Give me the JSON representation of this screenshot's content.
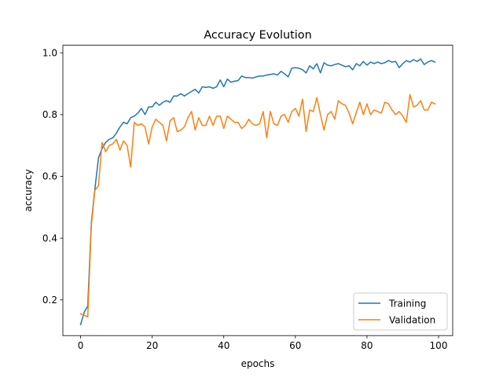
{
  "chart_data": {
    "type": "line",
    "title": "Accuracy Evolution",
    "xlabel": "epochs",
    "ylabel": "accuracy",
    "xlim": [
      -4.95,
      103.95
    ],
    "ylim": [
      0.0845,
      1.0245
    ],
    "xticks": [
      0,
      20,
      40,
      60,
      80,
      100
    ],
    "yticks": [
      0.2,
      0.4,
      0.6,
      0.8,
      1.0
    ],
    "xtick_labels": [
      "0",
      "20",
      "40",
      "60",
      "80",
      "100"
    ],
    "ytick_labels": [
      "0.2",
      "0.4",
      "0.6",
      "0.8",
      "1.0"
    ],
    "grid": false,
    "legend": "lower-right",
    "x": [
      0,
      1,
      2,
      3,
      4,
      5,
      6,
      7,
      8,
      9,
      10,
      11,
      12,
      13,
      14,
      15,
      16,
      17,
      18,
      19,
      20,
      21,
      22,
      23,
      24,
      25,
      26,
      27,
      28,
      29,
      30,
      31,
      32,
      33,
      34,
      35,
      36,
      37,
      38,
      39,
      40,
      41,
      42,
      43,
      44,
      45,
      46,
      47,
      48,
      49,
      50,
      51,
      52,
      53,
      54,
      55,
      56,
      57,
      58,
      59,
      60,
      61,
      62,
      63,
      64,
      65,
      66,
      67,
      68,
      69,
      70,
      71,
      72,
      73,
      74,
      75,
      76,
      77,
      78,
      79,
      80,
      81,
      82,
      83,
      84,
      85,
      86,
      87,
      88,
      89,
      90,
      91,
      92,
      93,
      94,
      95,
      96,
      97,
      98,
      99
    ],
    "series": [
      {
        "name": "Training",
        "color": "#1f77b4",
        "values": [
          0.12,
          0.16,
          0.18,
          0.45,
          0.56,
          0.66,
          0.69,
          0.71,
          0.72,
          0.725,
          0.74,
          0.76,
          0.775,
          0.77,
          0.79,
          0.795,
          0.805,
          0.82,
          0.8,
          0.825,
          0.825,
          0.84,
          0.83,
          0.84,
          0.845,
          0.84,
          0.86,
          0.86,
          0.868,
          0.86,
          0.868,
          0.875,
          0.882,
          0.87,
          0.89,
          0.888,
          0.89,
          0.885,
          0.89,
          0.912,
          0.89,
          0.915,
          0.905,
          0.908,
          0.91,
          0.925,
          0.92,
          0.92,
          0.918,
          0.922,
          0.925,
          0.925,
          0.928,
          0.93,
          0.932,
          0.928,
          0.94,
          0.932,
          0.922,
          0.95,
          0.952,
          0.95,
          0.945,
          0.935,
          0.958,
          0.948,
          0.965,
          0.935,
          0.968,
          0.96,
          0.958,
          0.962,
          0.965,
          0.96,
          0.955,
          0.958,
          0.945,
          0.965,
          0.958,
          0.972,
          0.96,
          0.97,
          0.965,
          0.97,
          0.965,
          0.968,
          0.975,
          0.97,
          0.972,
          0.952,
          0.965,
          0.975,
          0.97,
          0.978,
          0.972,
          0.98,
          0.962,
          0.97,
          0.975,
          0.97
        ]
      },
      {
        "name": "Validation",
        "color": "#ff7f0e",
        "values": [
          0.155,
          0.15,
          0.145,
          0.44,
          0.555,
          0.57,
          0.71,
          0.68,
          0.7,
          0.705,
          0.72,
          0.685,
          0.715,
          0.7,
          0.63,
          0.775,
          0.765,
          0.77,
          0.76,
          0.705,
          0.76,
          0.785,
          0.775,
          0.765,
          0.715,
          0.78,
          0.79,
          0.745,
          0.75,
          0.76,
          0.79,
          0.81,
          0.75,
          0.79,
          0.765,
          0.765,
          0.795,
          0.765,
          0.795,
          0.795,
          0.755,
          0.795,
          0.785,
          0.775,
          0.775,
          0.755,
          0.765,
          0.785,
          0.77,
          0.765,
          0.77,
          0.81,
          0.725,
          0.81,
          0.77,
          0.765,
          0.795,
          0.8,
          0.775,
          0.81,
          0.82,
          0.795,
          0.85,
          0.745,
          0.815,
          0.81,
          0.855,
          0.8,
          0.75,
          0.8,
          0.81,
          0.785,
          0.845,
          0.835,
          0.83,
          0.805,
          0.77,
          0.805,
          0.84,
          0.8,
          0.835,
          0.8,
          0.815,
          0.81,
          0.805,
          0.84,
          0.835,
          0.815,
          0.8,
          0.81,
          0.795,
          0.775,
          0.865,
          0.825,
          0.83,
          0.845,
          0.815,
          0.815,
          0.84,
          0.835
        ]
      }
    ]
  }
}
